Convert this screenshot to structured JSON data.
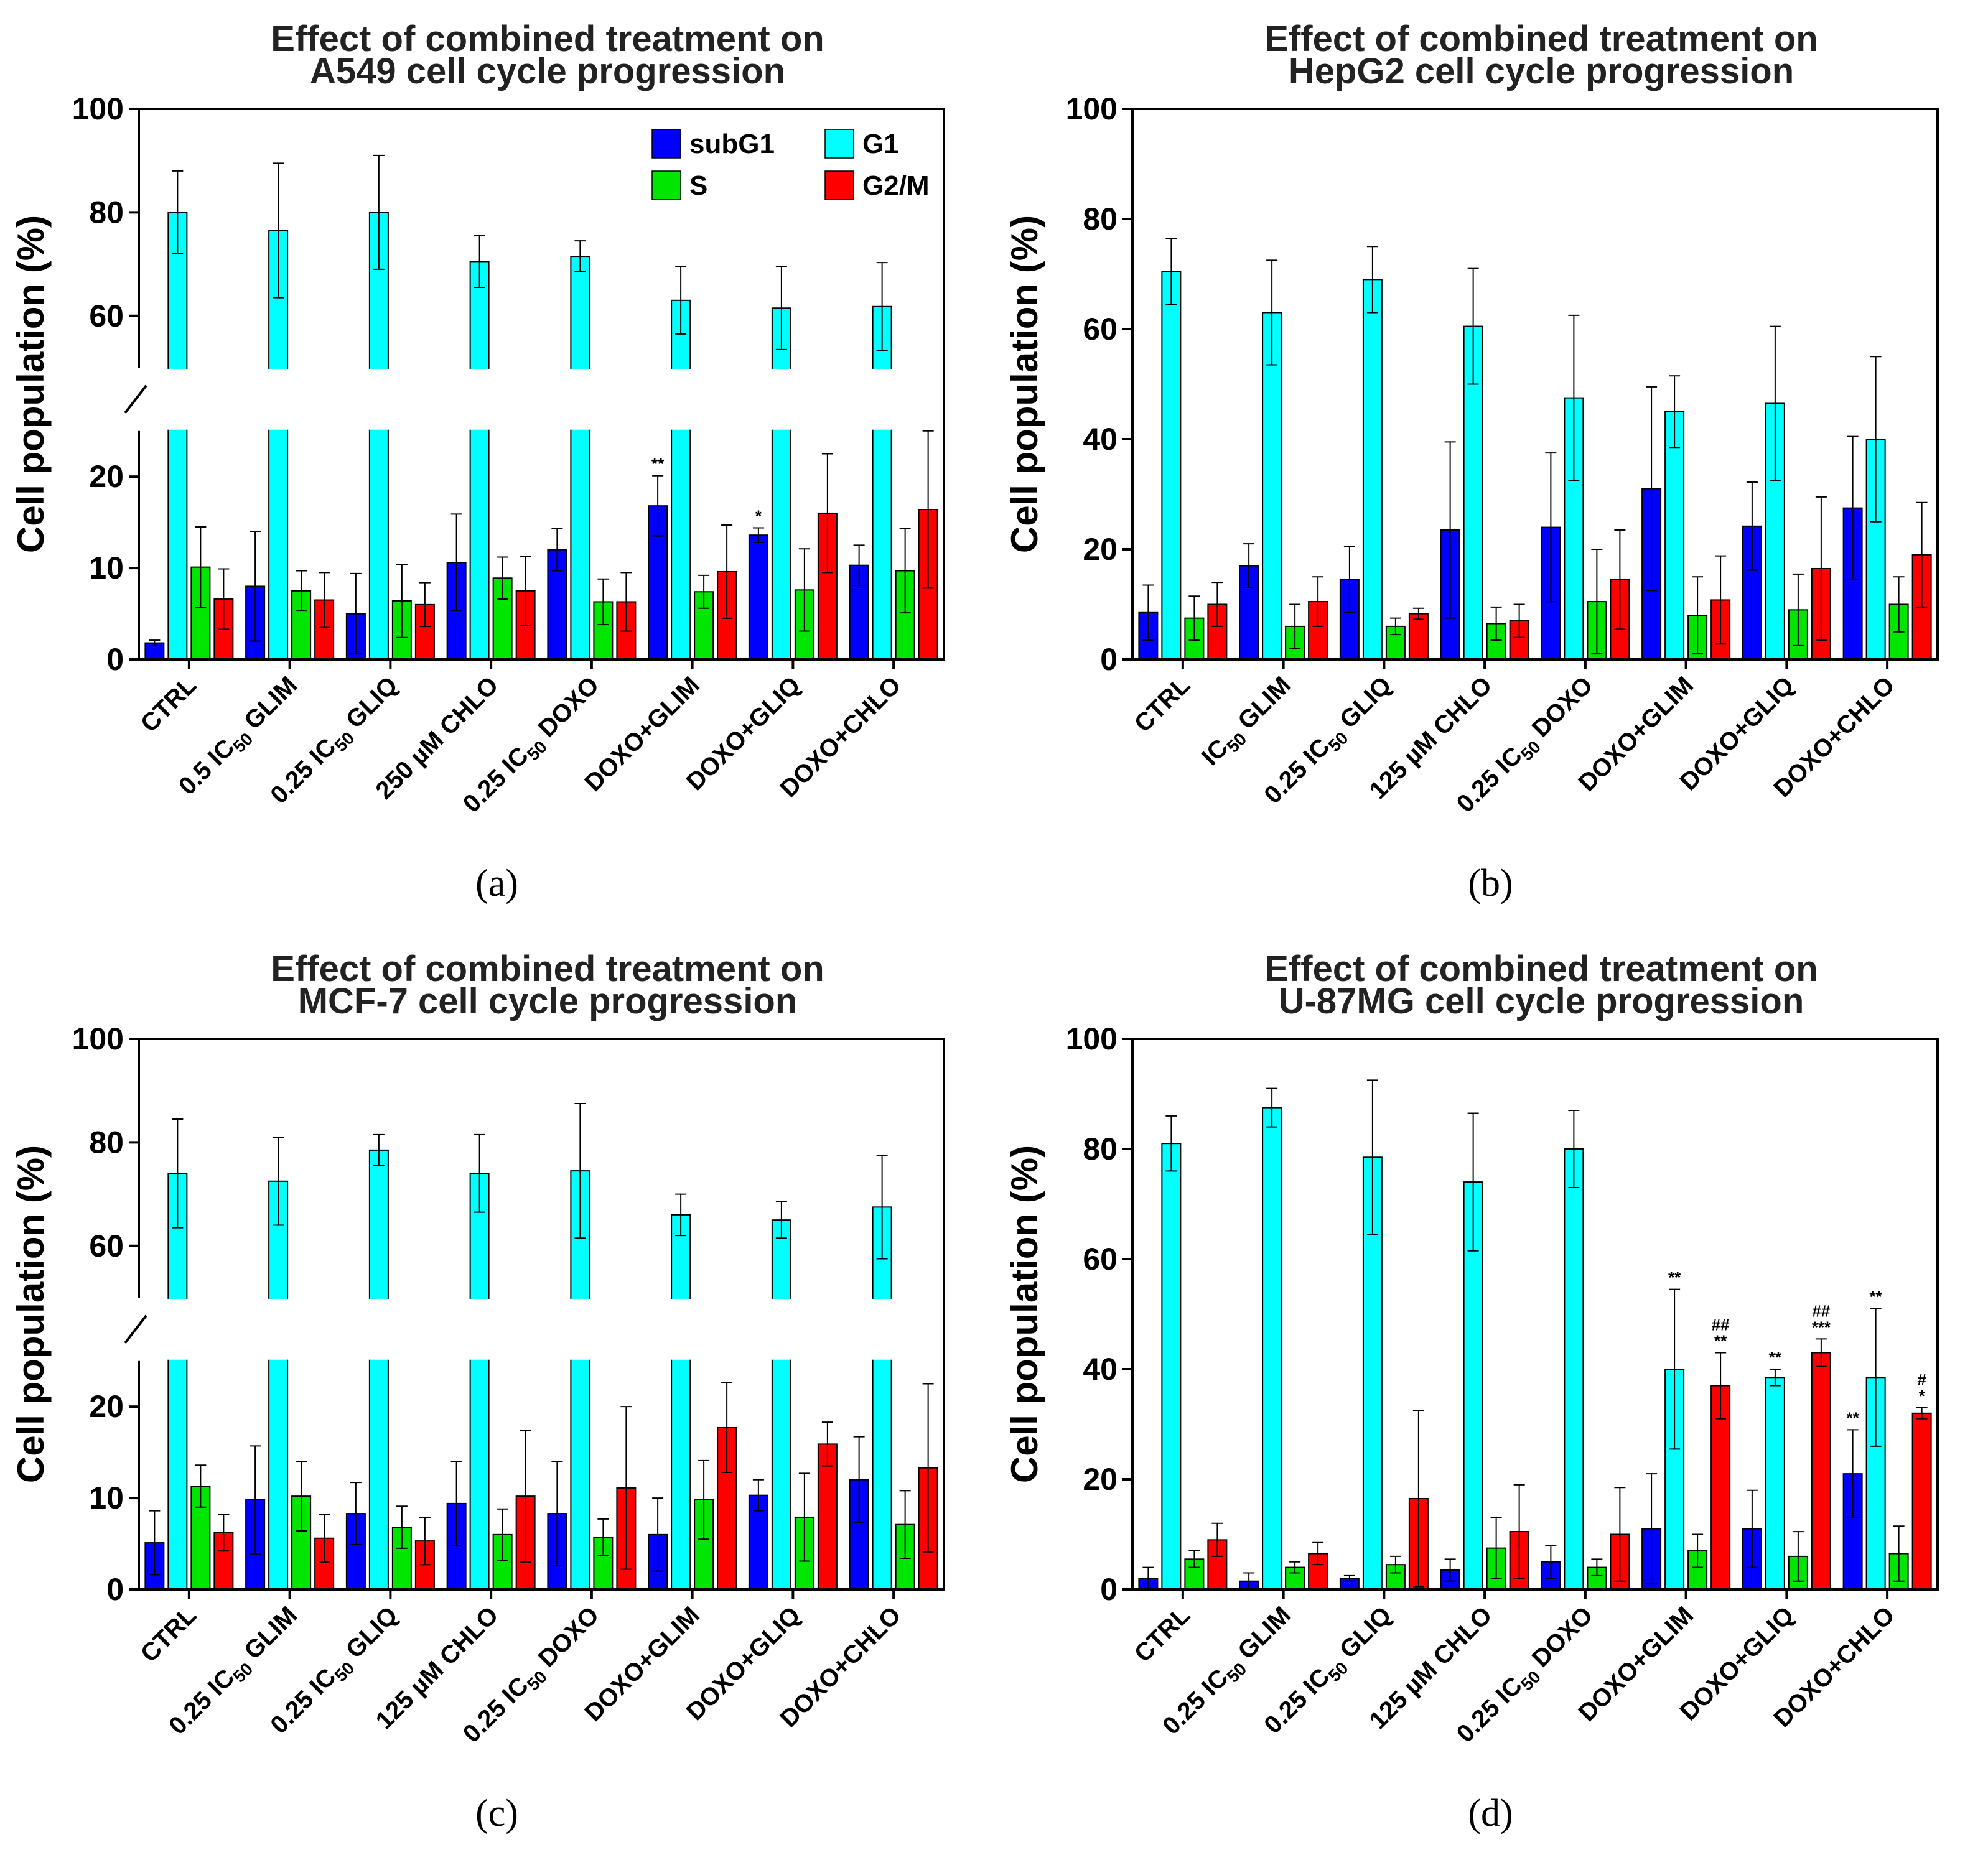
{
  "colors": {
    "subG1": "#0000ff",
    "G1": "#00ffff",
    "S": "#00e600",
    "G2/M": "#ff0000",
    "axis": "#000000"
  },
  "legend": [
    {
      "name": "subG1",
      "color": "#0000ff"
    },
    {
      "name": "G1",
      "color": "#00ffff"
    },
    {
      "name": "S",
      "color": "#00e600"
    },
    {
      "name": "G2/M",
      "color": "#ff0000"
    }
  ],
  "chart_data": [
    {
      "id": "a",
      "panel_label": "(a)",
      "type": "bar",
      "title": [
        "Effect of combined treatment on",
        "A549 cell cycle progression"
      ],
      "ylabel": "Cell population (%)",
      "ylim": [
        0,
        100
      ],
      "broken_axis": true,
      "lower_range": [
        0,
        25
      ],
      "upper_range": [
        50,
        100
      ],
      "yticks_lower": [
        0,
        10,
        20
      ],
      "yticks_upper": [
        60,
        80,
        100
      ],
      "show_legend": true,
      "categories": [
        "CTRL",
        "0.5 IC50 GLIM",
        "0.25 IC50 GLIQ",
        "250 µM CHLO",
        "0.25 IC50 DOXO",
        "DOXO+GLIM",
        "DOXO+GLIQ",
        "DOXO+CHLO"
      ],
      "category_labels": [
        [
          {
            "t": "CTRL"
          }
        ],
        [
          {
            "t": "0.5 IC"
          },
          {
            "t": "50",
            "sub": true
          },
          {
            "t": " GLIM"
          }
        ],
        [
          {
            "t": "0.25 IC"
          },
          {
            "t": "50",
            "sub": true
          },
          {
            "t": " GLIQ"
          }
        ],
        [
          {
            "t": "250 µM CHLO"
          }
        ],
        [
          {
            "t": "0.25 IC"
          },
          {
            "t": "50",
            "sub": true
          },
          {
            "t": " DOXO"
          }
        ],
        [
          {
            "t": "DOXO+GLIM"
          }
        ],
        [
          {
            "t": "DOXO+GLIQ"
          }
        ],
        [
          {
            "t": "DOXO+CHLO"
          }
        ]
      ],
      "series": [
        {
          "name": "subG1",
          "values": [
            1.8,
            8.0,
            5.0,
            10.6,
            12.0,
            16.8,
            13.6,
            10.3
          ],
          "errors": [
            0.3,
            6.0,
            4.4,
            5.3,
            2.3,
            3.3,
            0.8,
            2.2
          ]
        },
        {
          "name": "G1",
          "values": [
            80,
            76.5,
            80,
            70.5,
            71.5,
            63,
            61.5,
            61.8
          ],
          "errors": [
            8,
            13,
            11,
            5,
            3,
            6.5,
            8,
            8.5
          ]
        },
        {
          "name": "S",
          "values": [
            10.1,
            7.5,
            6.4,
            8.9,
            6.3,
            7.4,
            7.6,
            9.7
          ],
          "errors": [
            4.4,
            2.2,
            4.0,
            2.3,
            2.5,
            1.8,
            4.5,
            4.6
          ]
        },
        {
          "name": "G2/M",
          "values": [
            6.6,
            6.5,
            6.0,
            7.5,
            6.3,
            9.6,
            16.0,
            16.4
          ],
          "errors": [
            3.3,
            3.0,
            2.4,
            3.8,
            3.2,
            5.1,
            6.5,
            8.6
          ]
        }
      ],
      "annotations": [
        {
          "category": 5,
          "series": "subG1",
          "text": [
            "**"
          ]
        },
        {
          "category": 6,
          "series": "subG1",
          "text": [
            "*"
          ]
        }
      ]
    },
    {
      "id": "b",
      "panel_label": "(b)",
      "type": "bar",
      "title": [
        "Effect of combined treatment on",
        "HepG2 cell cycle progression"
      ],
      "ylabel": "Cell population (%)",
      "ylim": [
        0,
        100
      ],
      "broken_axis": false,
      "yticks": [
        0,
        20,
        40,
        60,
        80,
        100
      ],
      "show_legend": false,
      "categories": [
        "CTRL",
        "IC50 GLIM",
        "0.25 IC50 GLIQ",
        "125 µM CHLO",
        "0.25 IC50 DOXO",
        "DOXO+GLIM",
        "DOXO+GLIQ",
        "DOXO+CHLO"
      ],
      "category_labels": [
        [
          {
            "t": "CTRL"
          }
        ],
        [
          {
            "t": "IC"
          },
          {
            "t": "50",
            "sub": true
          },
          {
            "t": " GLIM"
          }
        ],
        [
          {
            "t": "0.25 IC"
          },
          {
            "t": "50",
            "sub": true
          },
          {
            "t": " GLIQ"
          }
        ],
        [
          {
            "t": "125 µM CHLO"
          }
        ],
        [
          {
            "t": "0.25 IC"
          },
          {
            "t": "50",
            "sub": true
          },
          {
            "t": " DOXO"
          }
        ],
        [
          {
            "t": "DOXO+GLIM"
          }
        ],
        [
          {
            "t": "DOXO+GLIQ"
          }
        ],
        [
          {
            "t": "DOXO+CHLO"
          }
        ]
      ],
      "series": [
        {
          "name": "subG1",
          "values": [
            8.5,
            17,
            14.5,
            23.5,
            24,
            31,
            24.2,
            27.5
          ],
          "errors": [
            5,
            4,
            6,
            16,
            13.5,
            18.5,
            8,
            13
          ]
        },
        {
          "name": "G1",
          "values": [
            70.5,
            63,
            69,
            60.5,
            47.5,
            45,
            46.5,
            40
          ],
          "errors": [
            6,
            9.5,
            6,
            10.5,
            15,
            6.5,
            14,
            15
          ]
        },
        {
          "name": "S",
          "values": [
            7.5,
            6,
            6,
            6.5,
            10.5,
            8,
            9,
            10
          ],
          "errors": [
            4,
            4,
            1.5,
            3,
            9.5,
            7,
            6.5,
            5
          ]
        },
        {
          "name": "G2/M",
          "values": [
            10,
            10.5,
            8.3,
            7,
            14.5,
            10.8,
            16.5,
            19
          ],
          "errors": [
            4,
            4.5,
            1,
            3,
            9,
            8,
            13,
            9.5
          ]
        }
      ],
      "annotations": []
    },
    {
      "id": "c",
      "panel_label": "(c)",
      "type": "bar",
      "title": [
        "Effect of combined treatment on",
        "MCF-7 cell cycle progression"
      ],
      "ylabel": "Cell population (%)",
      "ylim": [
        0,
        100
      ],
      "broken_axis": true,
      "lower_range": [
        0,
        25
      ],
      "upper_range": [
        50,
        100
      ],
      "yticks_lower": [
        0,
        10,
        20
      ],
      "yticks_upper": [
        60,
        80,
        100
      ],
      "show_legend": false,
      "categories": [
        "CTRL",
        "0.25 IC50 GLIM",
        "0.25 IC50 GLIQ",
        "125 µM CHLO",
        "0.25 IC50 DOXO",
        "DOXO+GLIM",
        "DOXO+GLIQ",
        "DOXO+CHLO"
      ],
      "category_labels": [
        [
          {
            "t": "CTRL"
          }
        ],
        [
          {
            "t": "0.25 IC"
          },
          {
            "t": "50",
            "sub": true
          },
          {
            "t": " GLIM"
          }
        ],
        [
          {
            "t": "0.25 IC"
          },
          {
            "t": "50",
            "sub": true
          },
          {
            "t": " GLIQ"
          }
        ],
        [
          {
            "t": "125 µM CHLO"
          }
        ],
        [
          {
            "t": "0.25 IC"
          },
          {
            "t": "50",
            "sub": true
          },
          {
            "t": " DOXO"
          }
        ],
        [
          {
            "t": "DOXO+GLIM"
          }
        ],
        [
          {
            "t": "DOXO+GLIQ"
          }
        ],
        [
          {
            "t": "DOXO+CHLO"
          }
        ]
      ],
      "series": [
        {
          "name": "subG1",
          "values": [
            5.1,
            9.8,
            8.3,
            9.4,
            8.3,
            6.0,
            10.3,
            12.0
          ],
          "errors": [
            3.5,
            5.9,
            3.4,
            4.6,
            5.7,
            4.0,
            1.7,
            4.7
          ]
        },
        {
          "name": "G1",
          "values": [
            74,
            72.5,
            78.5,
            74,
            74.5,
            66,
            65,
            67.5
          ],
          "errors": [
            10.5,
            8.5,
            3,
            7.5,
            13,
            4,
            3.5,
            10
          ]
        },
        {
          "name": "S",
          "values": [
            11.3,
            10.2,
            6.8,
            6.0,
            5.7,
            9.8,
            7.9,
            7.1
          ],
          "errors": [
            2.3,
            3.8,
            2.3,
            2.8,
            2.0,
            4.3,
            4.8,
            3.7
          ]
        },
        {
          "name": "G2/M",
          "values": [
            6.2,
            5.6,
            5.3,
            10.2,
            11.1,
            17.7,
            15.9,
            13.3
          ],
          "errors": [
            2.0,
            2.6,
            2.6,
            7.2,
            8.9,
            4.9,
            2.4,
            9.2
          ]
        }
      ],
      "annotations": []
    },
    {
      "id": "d",
      "panel_label": "(d)",
      "type": "bar",
      "title": [
        "Effect of combined treatment on",
        "U-87MG cell cycle progression"
      ],
      "ylabel": "Cell population (%)",
      "ylim": [
        0,
        100
      ],
      "broken_axis": false,
      "yticks": [
        0,
        20,
        40,
        60,
        80,
        100
      ],
      "show_legend": false,
      "categories": [
        "CTRL",
        "0.25 IC50 GLIM",
        "0.25 IC50 GLIQ",
        "125 µM CHLO",
        "0.25 IC50 DOXO",
        "DOXO+GLIM",
        "DOXO+GLIQ",
        "DOXO+CHLO"
      ],
      "category_labels": [
        [
          {
            "t": "CTRL"
          }
        ],
        [
          {
            "t": "0.25 IC"
          },
          {
            "t": "50",
            "sub": true
          },
          {
            "t": " GLIM"
          }
        ],
        [
          {
            "t": "0.25 IC"
          },
          {
            "t": "50",
            "sub": true
          },
          {
            "t": " GLIQ"
          }
        ],
        [
          {
            "t": "125 µM CHLO"
          }
        ],
        [
          {
            "t": "0.25 IC"
          },
          {
            "t": "50",
            "sub": true
          },
          {
            "t": " DOXO"
          }
        ],
        [
          {
            "t": "DOXO+GLIM"
          }
        ],
        [
          {
            "t": "DOXO+GLIQ"
          }
        ],
        [
          {
            "t": "DOXO+CHLO"
          }
        ]
      ],
      "series": [
        {
          "name": "subG1",
          "values": [
            2,
            1.5,
            2,
            3.5,
            5,
            11,
            11,
            21
          ],
          "errors": [
            2,
            1.5,
            0.5,
            2,
            3,
            10,
            7,
            8
          ]
        },
        {
          "name": "G1",
          "values": [
            81,
            87.5,
            78.5,
            74,
            80,
            40,
            38.5,
            38.5
          ],
          "errors": [
            5,
            3.5,
            14,
            12.5,
            7,
            14.5,
            1.5,
            12.5
          ]
        },
        {
          "name": "S",
          "values": [
            5.5,
            4,
            4.5,
            7.5,
            4,
            7,
            6,
            6.5
          ],
          "errors": [
            1.5,
            1,
            1.5,
            5.5,
            1.5,
            3,
            4.5,
            5
          ]
        },
        {
          "name": "G2/M",
          "values": [
            9,
            6.5,
            16.5,
            10.5,
            10,
            37,
            43,
            32
          ],
          "errors": [
            3,
            2,
            16,
            8.5,
            8.5,
            6,
            2.5,
            1
          ]
        }
      ],
      "annotations": [
        {
          "category": 5,
          "series": "G1",
          "text": [
            "**"
          ]
        },
        {
          "category": 5,
          "series": "G2/M",
          "text": [
            "##",
            "**"
          ]
        },
        {
          "category": 6,
          "series": "G1",
          "text": [
            "**"
          ]
        },
        {
          "category": 6,
          "series": "G2/M",
          "text": [
            "##",
            "***"
          ]
        },
        {
          "category": 7,
          "series": "subG1",
          "text": [
            "**"
          ]
        },
        {
          "category": 7,
          "series": "G1",
          "text": [
            "**"
          ]
        },
        {
          "category": 7,
          "series": "G2/M",
          "text": [
            "#",
            "*"
          ]
        }
      ]
    }
  ]
}
